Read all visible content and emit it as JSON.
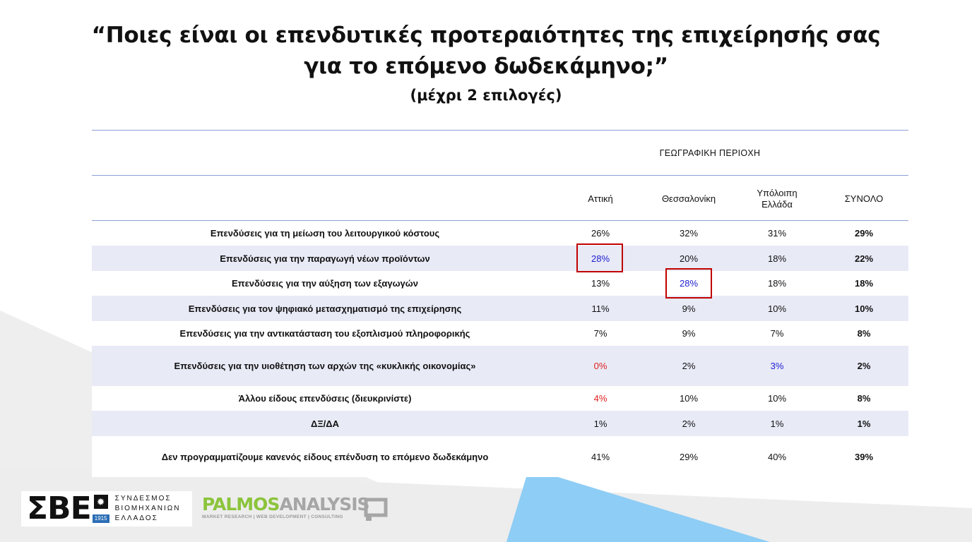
{
  "title": {
    "line1": "“Ποιες είναι οι επενδυτικές προτεραιότητες της επιχείρησής σας",
    "line2": "για το επόμενο δωδεκάμηνο;”",
    "subtitle": "(μέχρι 2 επιλογές)"
  },
  "table": {
    "group_header": "ΓΕΩΓΡΑΦΙΚΗ ΠΕΡΙΟΧΗ",
    "columns": [
      "Αττική",
      "Θεσσαλονίκη",
      "Υπόλοιπη\nΕλλάδα",
      "ΣΥΝΟΛΟ"
    ],
    "rows": [
      {
        "label": "Επενδύσεις για τη μείωση του λειτουργικού κόστους",
        "values": [
          "26%",
          "32%",
          "31%",
          "29%"
        ]
      },
      {
        "label": "Επενδύσεις για την παραγωγή νέων προϊόντων",
        "values": [
          "28%",
          "20%",
          "18%",
          "22%"
        ]
      },
      {
        "label": "Επενδύσεις για την αύξηση των εξαγωγών",
        "values": [
          "13%",
          "28%",
          "18%",
          "18%"
        ]
      },
      {
        "label": "Επενδύσεις για τον ψηφιακό μετασχηματισμό της επιχείρησης",
        "values": [
          "11%",
          "9%",
          "10%",
          "10%"
        ]
      },
      {
        "label": "Επενδύσεις για την αντικατάσταση του εξοπλισμού πληροφορικής",
        "values": [
          "7%",
          "9%",
          "7%",
          "8%"
        ]
      },
      {
        "label": "Επενδύσεις για την υιοθέτηση των αρχών της «κυκλικής οικονομίας»",
        "values": [
          "0%",
          "2%",
          "3%",
          "2%"
        ]
      },
      {
        "label": "Άλλου είδους επενδύσεις (διευκρινίστε)",
        "values": [
          "4%",
          "10%",
          "10%",
          "8%"
        ]
      },
      {
        "label": "ΔΞ/ΔΑ",
        "values": [
          "1%",
          "2%",
          "1%",
          "1%"
        ]
      },
      {
        "label": "Δεν προγραμματίζουμε κανενός είδους επένδυση το επόμενο δωδεκάμηνο",
        "values": [
          "41%",
          "29%",
          "40%",
          "39%"
        ]
      }
    ],
    "highlight_color_blue": "#2020d0",
    "highlight_color_red": "#e02020",
    "box_color": "#c00000"
  },
  "logos": {
    "sbe": {
      "letters": "ΣΒΕ",
      "year": "1915",
      "words": [
        "ΣΥΝΔΕΣΜΟΣ",
        "ΒΙΟΜΗΧΑΝΙΩΝ",
        "ΕΛΛΑΔΟΣ"
      ]
    },
    "palmos": {
      "part1": "PALMOS",
      "part2": "ANALYSIS",
      "tagline": "MARKET RESEARCH | WEB DEVELOPMENT | CONSULTING"
    }
  }
}
